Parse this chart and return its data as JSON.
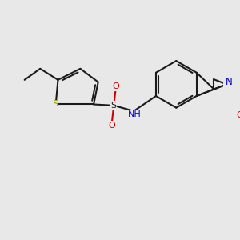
{
  "background_color": "#e8e8e8",
  "bond_color": "#1a1a1a",
  "S_color": "#999900",
  "N_color": "#0000cc",
  "O_color": "#cc0000",
  "line_width": 1.5,
  "figsize": [
    3.0,
    3.0
  ],
  "dpi": 100,
  "xlim": [
    0,
    10
  ],
  "ylim": [
    0,
    10
  ]
}
